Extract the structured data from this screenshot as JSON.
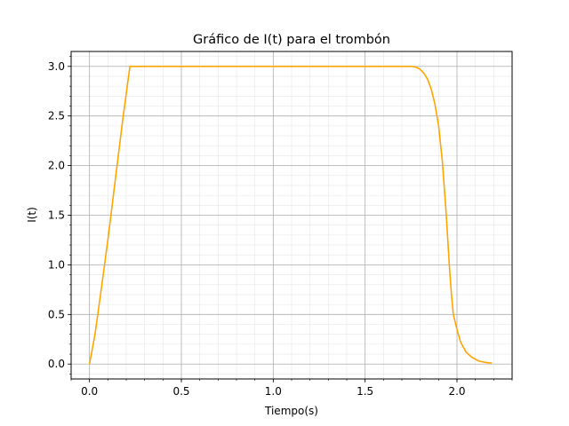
{
  "chart_data": {
    "type": "line",
    "title": "Gráfico de I(t) para el trombón",
    "xlabel": "Tiempo(s)",
    "ylabel": "I(t)",
    "xlim": [
      -0.1,
      2.3
    ],
    "ylim": [
      -0.15,
      3.15
    ],
    "x_ticks": [
      0.0,
      0.5,
      1.0,
      1.5,
      2.0
    ],
    "x_tick_labels": [
      "0.0",
      "0.5",
      "1.0",
      "1.5",
      "2.0"
    ],
    "y_ticks": [
      0.0,
      0.5,
      1.0,
      1.5,
      2.0,
      2.5,
      3.0
    ],
    "y_tick_labels": [
      "0.0",
      "0.5",
      "1.0",
      "1.5",
      "2.0",
      "2.5",
      "3.0"
    ],
    "grid": true,
    "minor_grid": true,
    "series": [
      {
        "color": "#ffa500",
        "points": [
          [
            0.0,
            0.0
          ],
          [
            0.03,
            0.3
          ],
          [
            0.06,
            0.7
          ],
          [
            0.1,
            1.25
          ],
          [
            0.14,
            1.85
          ],
          [
            0.18,
            2.45
          ],
          [
            0.22,
            3.0
          ],
          [
            0.5,
            3.0
          ],
          [
            1.0,
            3.0
          ],
          [
            1.5,
            3.0
          ],
          [
            1.75,
            3.0
          ],
          [
            1.78,
            2.99
          ],
          [
            1.8,
            2.97
          ],
          [
            1.82,
            2.93
          ],
          [
            1.84,
            2.87
          ],
          [
            1.86,
            2.77
          ],
          [
            1.88,
            2.62
          ],
          [
            1.9,
            2.4
          ],
          [
            1.92,
            2.05
          ],
          [
            1.94,
            1.55
          ],
          [
            1.96,
            0.95
          ],
          [
            1.97,
            0.7
          ],
          [
            1.98,
            0.5
          ],
          [
            2.0,
            0.35
          ],
          [
            2.02,
            0.22
          ],
          [
            2.05,
            0.12
          ],
          [
            2.08,
            0.07
          ],
          [
            2.12,
            0.03
          ],
          [
            2.16,
            0.015
          ],
          [
            2.19,
            0.01
          ]
        ]
      }
    ]
  }
}
